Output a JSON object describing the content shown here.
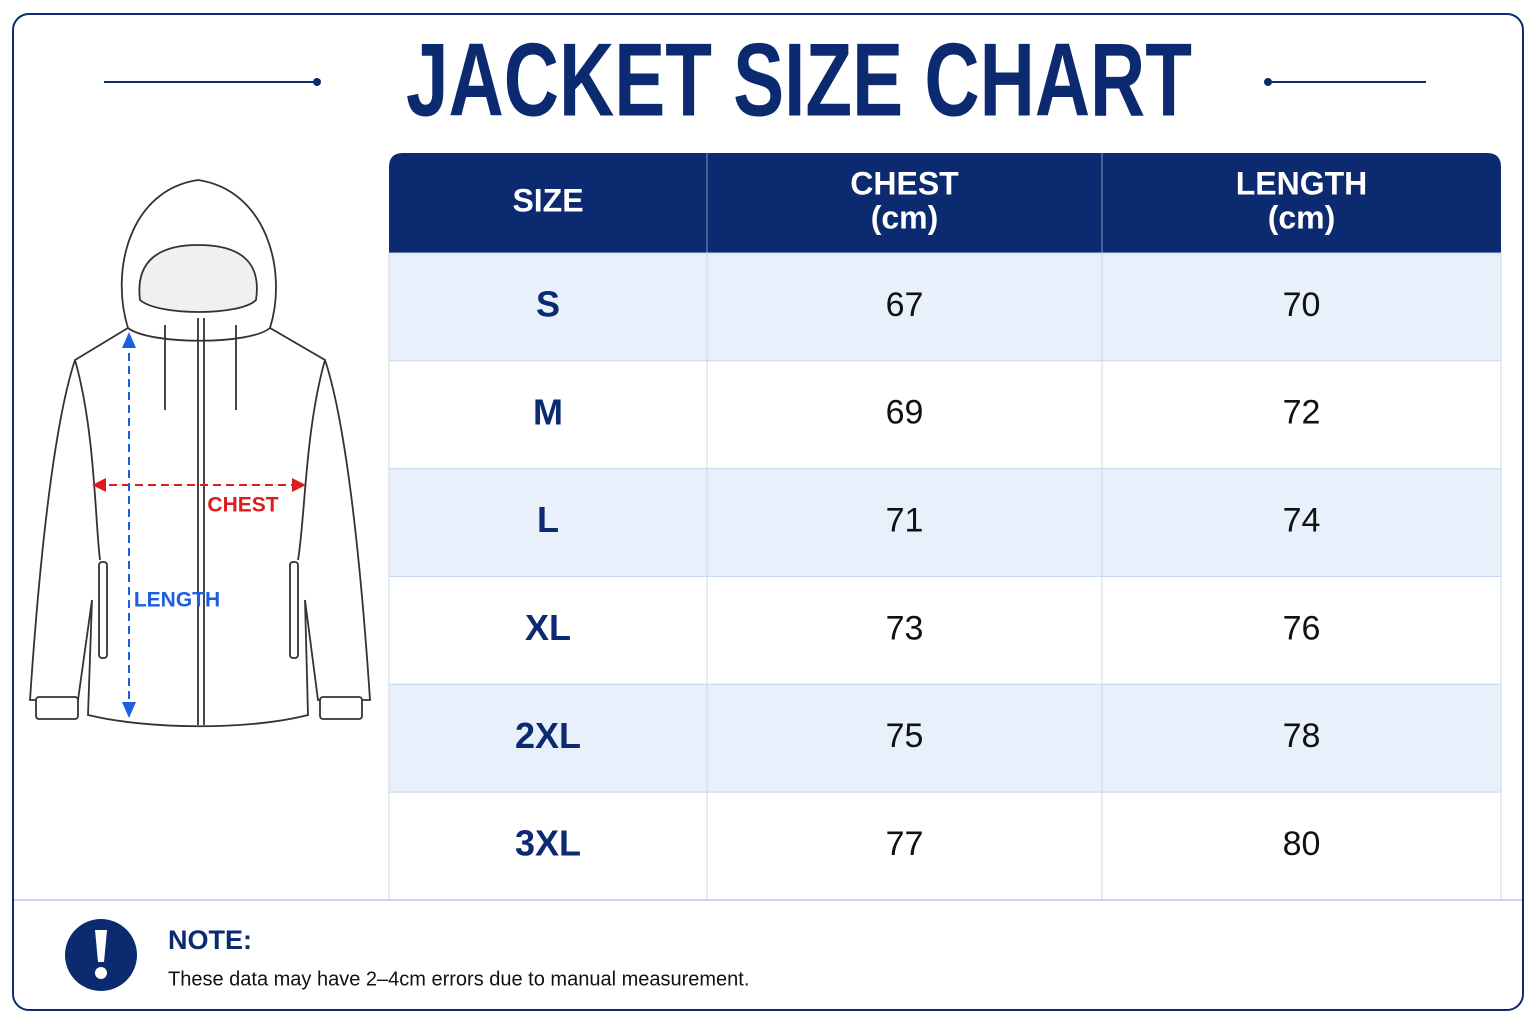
{
  "title": "JACKET SIZE CHART",
  "diagram": {
    "chest_label": "CHEST",
    "length_label": "LENGTH"
  },
  "table": {
    "headers": [
      [
        "SIZE"
      ],
      [
        "CHEST",
        "(cm)"
      ],
      [
        "LENGTH",
        "(cm)"
      ]
    ],
    "rows": [
      [
        "S",
        67,
        70
      ],
      [
        "M",
        69,
        72
      ],
      [
        "L",
        71,
        74
      ],
      [
        "XL",
        73,
        76
      ],
      [
        "2XL",
        75,
        78
      ],
      [
        "3XL",
        77,
        80
      ]
    ]
  },
  "note": {
    "title": "NOTE:",
    "text": "These data may have 2–4cm errors due to manual measurement."
  }
}
